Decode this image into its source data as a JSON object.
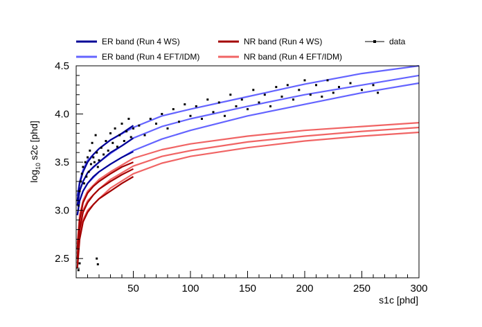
{
  "chart_data": {
    "type": "scatter",
    "title": "",
    "xlabel": "s1c [phd]",
    "ylabel_main": "log",
    "ylabel_sub": "10",
    "ylabel_rest": " s2c [phd]",
    "xlim": [
      0,
      300
    ],
    "ylim": [
      2.3,
      4.5
    ],
    "x_ticks": [
      "50",
      "100",
      "150",
      "200",
      "250",
      "300"
    ],
    "y_ticks": [
      "2.5",
      "3.0",
      "3.5",
      "4.0",
      "4.5"
    ],
    "grid": false,
    "legend_placement": "top",
    "legend": [
      {
        "label": "ER band (Run 4 WS)",
        "color": "#000096",
        "style": "line"
      },
      {
        "label": "NR band (Run 4 WS)",
        "color": "#a30000",
        "style": "line"
      },
      {
        "label": "data",
        "color": "#000000",
        "style": "marker-line"
      },
      {
        "label": "ER band (Run 4 EFT/IDM)",
        "color": "#6464ff",
        "style": "line"
      },
      {
        "label": "NR band (Run 4 EFT/IDM)",
        "color": "#f06464",
        "style": "line"
      }
    ],
    "series": [
      {
        "name": "ER band (Run 4 WS)",
        "color": "#000096",
        "role": "upper",
        "x": [
          1,
          3,
          6,
          10,
          15,
          20,
          30,
          40,
          50
        ],
        "y": [
          3.1,
          3.28,
          3.4,
          3.5,
          3.58,
          3.64,
          3.73,
          3.8,
          3.88
        ]
      },
      {
        "name": "ER band (Run 4 WS)",
        "color": "#000096",
        "role": "median",
        "x": [
          1,
          3,
          6,
          10,
          15,
          20,
          30,
          40,
          50
        ],
        "y": [
          3.05,
          3.2,
          3.3,
          3.39,
          3.45,
          3.5,
          3.6,
          3.67,
          3.75
        ]
      },
      {
        "name": "ER band (Run 4 WS)",
        "color": "#000096",
        "role": "lower",
        "x": [
          1,
          3,
          6,
          10,
          15,
          20,
          30,
          40,
          50
        ],
        "y": [
          2.95,
          3.1,
          3.2,
          3.28,
          3.35,
          3.4,
          3.48,
          3.55,
          3.61
        ]
      },
      {
        "name": "NR band (Run 4 WS)",
        "color": "#a30000",
        "role": "upper",
        "x": [
          1,
          3,
          6,
          10,
          15,
          20,
          30,
          40,
          50
        ],
        "y": [
          2.6,
          2.9,
          3.08,
          3.18,
          3.25,
          3.3,
          3.38,
          3.45,
          3.5
        ]
      },
      {
        "name": "NR band (Run 4 WS)",
        "color": "#a30000",
        "role": "median",
        "x": [
          1,
          3,
          6,
          10,
          15,
          20,
          30,
          40,
          50
        ],
        "y": [
          2.5,
          2.8,
          2.98,
          3.08,
          3.16,
          3.22,
          3.3,
          3.37,
          3.43
        ]
      },
      {
        "name": "NR band (Run 4 WS)",
        "color": "#a30000",
        "role": "lower",
        "x": [
          1,
          3,
          6,
          10,
          15,
          20,
          30,
          40,
          50
        ],
        "y": [
          2.4,
          2.7,
          2.88,
          2.98,
          3.06,
          3.12,
          3.2,
          3.28,
          3.35
        ]
      },
      {
        "name": "ER band (Run 4 EFT/IDM)",
        "color": "#6464ff",
        "role": "upper",
        "x": [
          1,
          3,
          6,
          10,
          20,
          30,
          50,
          75,
          100,
          150,
          200,
          250,
          300
        ],
        "y": [
          3.15,
          3.3,
          3.42,
          3.52,
          3.64,
          3.73,
          3.86,
          3.98,
          4.05,
          4.18,
          4.31,
          4.42,
          4.5
        ]
      },
      {
        "name": "ER band (Run 4 EFT/IDM)",
        "color": "#6464ff",
        "role": "median",
        "x": [
          1,
          3,
          6,
          10,
          20,
          30,
          50,
          75,
          100,
          150,
          200,
          250,
          300
        ],
        "y": [
          3.05,
          3.2,
          3.3,
          3.39,
          3.5,
          3.59,
          3.75,
          3.87,
          3.95,
          4.08,
          4.2,
          4.3,
          4.4
        ]
      },
      {
        "name": "ER band (Run 4 EFT/IDM)",
        "color": "#6464ff",
        "role": "lower",
        "x": [
          1,
          3,
          6,
          10,
          20,
          30,
          50,
          75,
          100,
          150,
          200,
          250,
          300
        ],
        "y": [
          2.95,
          3.1,
          3.2,
          3.28,
          3.4,
          3.48,
          3.62,
          3.74,
          3.83,
          3.98,
          4.1,
          4.22,
          4.32
        ]
      },
      {
        "name": "NR band (Run 4 EFT/IDM)",
        "color": "#f06464",
        "role": "upper",
        "x": [
          1,
          3,
          6,
          10,
          20,
          30,
          50,
          75,
          100,
          150,
          200,
          250,
          300
        ],
        "y": [
          2.65,
          2.95,
          3.1,
          3.2,
          3.32,
          3.4,
          3.54,
          3.63,
          3.69,
          3.77,
          3.83,
          3.87,
          3.91
        ]
      },
      {
        "name": "NR band (Run 4 EFT/IDM)",
        "color": "#f06464",
        "role": "median",
        "x": [
          1,
          3,
          6,
          10,
          20,
          30,
          50,
          75,
          100,
          150,
          200,
          250,
          300
        ],
        "y": [
          2.55,
          2.85,
          3.0,
          3.1,
          3.22,
          3.32,
          3.46,
          3.56,
          3.62,
          3.71,
          3.77,
          3.82,
          3.86
        ]
      },
      {
        "name": "NR band (Run 4 EFT/IDM)",
        "color": "#f06464",
        "role": "lower",
        "x": [
          1,
          3,
          6,
          10,
          20,
          30,
          50,
          75,
          100,
          150,
          200,
          250,
          300
        ],
        "y": [
          2.45,
          2.75,
          2.9,
          3.0,
          3.12,
          3.23,
          3.38,
          3.49,
          3.56,
          3.65,
          3.72,
          3.77,
          3.81
        ]
      },
      {
        "name": "data",
        "color": "#000000",
        "role": "points",
        "points": [
          [
            2,
            3.05
          ],
          [
            3,
            3.2
          ],
          [
            4,
            3.3
          ],
          [
            5,
            3.38
          ],
          [
            6,
            3.45
          ],
          [
            7,
            3.28
          ],
          [
            8,
            3.5
          ],
          [
            9,
            3.35
          ],
          [
            10,
            3.55
          ],
          [
            11,
            3.4
          ],
          [
            12,
            3.62
          ],
          [
            13,
            3.48
          ],
          [
            14,
            3.7
          ],
          [
            15,
            3.55
          ],
          [
            16,
            3.5
          ],
          [
            17,
            3.78
          ],
          [
            18,
            3.6
          ],
          [
            19,
            3.45
          ],
          [
            20,
            3.52
          ],
          [
            22,
            3.65
          ],
          [
            24,
            3.58
          ],
          [
            26,
            3.72
          ],
          [
            28,
            3.62
          ],
          [
            30,
            3.8
          ],
          [
            32,
            3.7
          ],
          [
            34,
            3.85
          ],
          [
            36,
            3.66
          ],
          [
            38,
            3.78
          ],
          [
            40,
            3.9
          ],
          [
            42,
            3.72
          ],
          [
            44,
            3.82
          ],
          [
            46,
            3.95
          ],
          [
            48,
            3.76
          ],
          [
            50,
            3.85
          ],
          [
            55,
            3.88
          ],
          [
            60,
            3.78
          ],
          [
            65,
            3.95
          ],
          [
            70,
            3.9
          ],
          [
            75,
            4.0
          ],
          [
            80,
            3.85
          ],
          [
            85,
            4.05
          ],
          [
            90,
            3.92
          ],
          [
            95,
            4.1
          ],
          [
            100,
            3.98
          ],
          [
            105,
            4.08
          ],
          [
            110,
            3.95
          ],
          [
            115,
            4.15
          ],
          [
            120,
            4.02
          ],
          [
            125,
            4.12
          ],
          [
            130,
            3.98
          ],
          [
            135,
            4.2
          ],
          [
            140,
            4.08
          ],
          [
            145,
            4.15
          ],
          [
            150,
            4.05
          ],
          [
            155,
            4.25
          ],
          [
            160,
            4.12
          ],
          [
            165,
            4.2
          ],
          [
            170,
            4.08
          ],
          [
            175,
            4.28
          ],
          [
            180,
            4.18
          ],
          [
            185,
            4.3
          ],
          [
            190,
            4.15
          ],
          [
            195,
            4.25
          ],
          [
            200,
            4.35
          ],
          [
            205,
            4.2
          ],
          [
            210,
            4.3
          ],
          [
            215,
            4.18
          ],
          [
            220,
            4.35
          ],
          [
            225,
            4.22
          ],
          [
            230,
            4.28
          ],
          [
            240,
            4.32
          ],
          [
            250,
            4.25
          ],
          [
            260,
            4.3
          ],
          [
            264,
            4.22
          ],
          [
            18,
            2.5
          ],
          [
            19,
            2.44
          ],
          [
            3,
            2.45
          ],
          [
            2,
            2.38
          ]
        ]
      }
    ]
  }
}
